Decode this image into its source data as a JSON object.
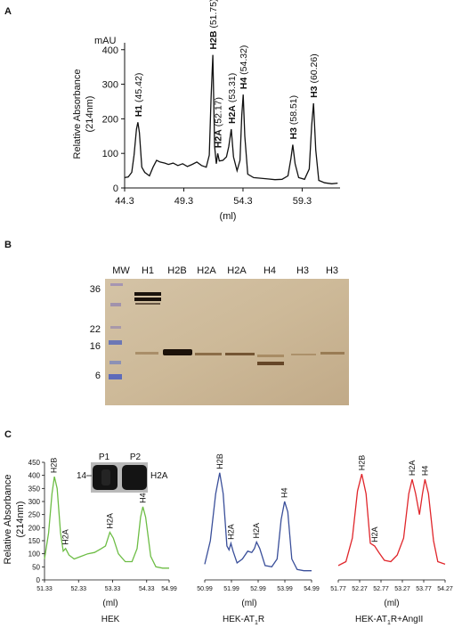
{
  "panel_labels": {
    "a": "A",
    "b": "B",
    "c": "C"
  },
  "panel_a": {
    "unit": "mAU",
    "ylabel_line1": "Relative Absorbance",
    "ylabel_line2": "(214nm)",
    "xlabel": "(ml)"
  },
  "panel_b": {
    "mw_header": "MW",
    "mw_marks": [
      "36",
      "22",
      "16",
      "6"
    ],
    "lanes": [
      "H1",
      "H2B",
      "H2A",
      "H2A",
      "H4",
      "H3",
      "H3"
    ]
  },
  "panel_c": {
    "ylabel_line1": "Relative Absorbance",
    "ylabel_line2": "(214nm)",
    "xlabel": "(ml)",
    "inset": {
      "p1": "P1",
      "p2": "P2",
      "mw": "14",
      "band": "H2A"
    },
    "subtitles": [
      "HEK",
      "HEK-AT",
      "HEK-AT",
      "R",
      "R+AngII",
      "1"
    ]
  },
  "chart_data": [
    {
      "type": "line",
      "panel": "A",
      "ylabel": "Relative Absorbance (214nm)",
      "xlabel": "(ml)",
      "unit": "mAU",
      "x_ticks": [
        "44.3",
        "49.3",
        "54.3",
        "59.3"
      ],
      "y_ticks": [
        "0",
        "100",
        "200",
        "300",
        "400"
      ],
      "xlim": [
        44.3,
        62.5
      ],
      "ylim": [
        0,
        420
      ],
      "peaks": [
        {
          "label": "H1",
          "elution": "(45.42)",
          "x": 45.42,
          "y": 190
        },
        {
          "label": "H2B",
          "elution": "(51.75)",
          "x": 51.75,
          "y": 385
        },
        {
          "label": "H2A",
          "elution": "(52.17)",
          "x": 52.17,
          "y": 100
        },
        {
          "label": "H2A",
          "elution": "(53.31)",
          "x": 53.31,
          "y": 170
        },
        {
          "label": "H4",
          "elution": "(54.32)",
          "x": 54.32,
          "y": 270
        },
        {
          "label": "H3",
          "elution": "(58.51)",
          "x": 58.51,
          "y": 125
        },
        {
          "label": "H3",
          "elution": "(60.26)",
          "x": 60.26,
          "y": 245
        }
      ],
      "baseline": [
        [
          44.3,
          30
        ],
        [
          44.6,
          32
        ],
        [
          44.9,
          45
        ],
        [
          45.1,
          95
        ],
        [
          45.3,
          170
        ],
        [
          45.42,
          190
        ],
        [
          45.55,
          160
        ],
        [
          45.75,
          60
        ],
        [
          46.0,
          45
        ],
        [
          46.4,
          35
        ],
        [
          46.7,
          60
        ],
        [
          47.0,
          80
        ],
        [
          47.3,
          75
        ],
        [
          47.7,
          72
        ],
        [
          48.0,
          68
        ],
        [
          48.4,
          72
        ],
        [
          48.8,
          65
        ],
        [
          49.2,
          70
        ],
        [
          49.6,
          62
        ],
        [
          50.0,
          68
        ],
        [
          50.4,
          75
        ],
        [
          50.8,
          65
        ],
        [
          51.2,
          60
        ],
        [
          51.45,
          95
        ],
        [
          51.6,
          260
        ],
        [
          51.75,
          385
        ],
        [
          51.9,
          120
        ],
        [
          52.05,
          70
        ],
        [
          52.17,
          100
        ],
        [
          52.3,
          78
        ],
        [
          52.6,
          80
        ],
        [
          52.9,
          90
        ],
        [
          53.1,
          120
        ],
        [
          53.31,
          170
        ],
        [
          53.5,
          90
        ],
        [
          53.8,
          50
        ],
        [
          54.05,
          80
        ],
        [
          54.2,
          210
        ],
        [
          54.32,
          270
        ],
        [
          54.45,
          150
        ],
        [
          54.7,
          40
        ],
        [
          55.2,
          30
        ],
        [
          55.8,
          28
        ],
        [
          56.4,
          26
        ],
        [
          57.0,
          24
        ],
        [
          57.6,
          25
        ],
        [
          58.1,
          35
        ],
        [
          58.35,
          85
        ],
        [
          58.51,
          125
        ],
        [
          58.7,
          70
        ],
        [
          59.0,
          30
        ],
        [
          59.5,
          25
        ],
        [
          59.9,
          55
        ],
        [
          60.1,
          180
        ],
        [
          60.26,
          245
        ],
        [
          60.45,
          110
        ],
        [
          60.7,
          22
        ],
        [
          61.2,
          15
        ],
        [
          61.8,
          12
        ],
        [
          62.3,
          14
        ]
      ]
    },
    {
      "type": "line",
      "panel": "C-1",
      "subtitle": "HEK",
      "color": "#6dbd45",
      "x_ticks": [
        "51.33",
        "52.33",
        "53.33",
        "54.33",
        "54.99"
      ],
      "xlim": [
        51.33,
        54.99
      ],
      "y_ticks": [
        "0",
        "50",
        "100",
        "150",
        "200",
        "250",
        "300",
        "350",
        "400",
        "450"
      ],
      "ylim": [
        0,
        450
      ],
      "peak_labels": [
        {
          "label": "H2B",
          "x": 51.6,
          "y": 395
        },
        {
          "label": "H2A",
          "x": 51.95,
          "y": 120
        },
        {
          "label": "H2A",
          "x": 53.25,
          "y": 182
        },
        {
          "label": "H4",
          "x": 54.22,
          "y": 280
        }
      ],
      "trace": [
        [
          51.33,
          80
        ],
        [
          51.45,
          180
        ],
        [
          51.55,
          330
        ],
        [
          51.62,
          395
        ],
        [
          51.7,
          350
        ],
        [
          51.8,
          180
        ],
        [
          51.88,
          110
        ],
        [
          51.95,
          120
        ],
        [
          52.05,
          95
        ],
        [
          52.2,
          80
        ],
        [
          52.4,
          90
        ],
        [
          52.6,
          100
        ],
        [
          52.8,
          105
        ],
        [
          53.0,
          120
        ],
        [
          53.12,
          130
        ],
        [
          53.25,
          182
        ],
        [
          53.35,
          160
        ],
        [
          53.5,
          100
        ],
        [
          53.7,
          70
        ],
        [
          53.9,
          70
        ],
        [
          54.05,
          120
        ],
        [
          54.15,
          240
        ],
        [
          54.22,
          280
        ],
        [
          54.3,
          240
        ],
        [
          54.45,
          90
        ],
        [
          54.6,
          50
        ],
        [
          54.8,
          45
        ],
        [
          54.99,
          45
        ]
      ]
    },
    {
      "type": "line",
      "panel": "C-2",
      "color": "#3a4f9a",
      "x_ticks": [
        "50.99",
        "51.99",
        "52.99",
        "53.99",
        "54.99"
      ],
      "xlim": [
        50.99,
        54.99
      ],
      "y_ticks": [],
      "ylim": [
        0,
        450
      ],
      "peak_labels": [
        {
          "label": "H2B",
          "x": 51.55,
          "y": 410
        },
        {
          "label": "H2A",
          "x": 51.97,
          "y": 140
        },
        {
          "label": "H2A",
          "x": 52.93,
          "y": 145
        },
        {
          "label": "H4",
          "x": 53.98,
          "y": 300
        }
      ],
      "trace": [
        [
          50.99,
          60
        ],
        [
          51.2,
          150
        ],
        [
          51.4,
          330
        ],
        [
          51.55,
          410
        ],
        [
          51.68,
          330
        ],
        [
          51.82,
          130
        ],
        [
          51.9,
          115
        ],
        [
          51.97,
          140
        ],
        [
          52.05,
          110
        ],
        [
          52.2,
          65
        ],
        [
          52.4,
          80
        ],
        [
          52.6,
          110
        ],
        [
          52.75,
          105
        ],
        [
          52.85,
          120
        ],
        [
          52.93,
          145
        ],
        [
          53.05,
          120
        ],
        [
          53.25,
          55
        ],
        [
          53.5,
          50
        ],
        [
          53.7,
          80
        ],
        [
          53.85,
          230
        ],
        [
          53.98,
          300
        ],
        [
          54.1,
          260
        ],
        [
          54.25,
          80
        ],
        [
          54.45,
          40
        ],
        [
          54.7,
          35
        ],
        [
          54.99,
          35
        ]
      ]
    },
    {
      "type": "line",
      "panel": "C-3",
      "color": "#e0262b",
      "x_ticks": [
        "51.77",
        "52.27",
        "52.77",
        "53.27",
        "53.77",
        "54.27"
      ],
      "xlim": [
        51.77,
        54.27
      ],
      "y_ticks": [],
      "ylim": [
        0,
        450
      ],
      "peak_labels": [
        {
          "label": "H2B",
          "x": 52.32,
          "y": 405
        },
        {
          "label": "H2A",
          "x": 52.62,
          "y": 130
        },
        {
          "label": "H2A",
          "x": 53.5,
          "y": 385
        },
        {
          "label": "H4",
          "x": 53.8,
          "y": 385
        }
      ],
      "trace": [
        [
          51.77,
          55
        ],
        [
          51.95,
          70
        ],
        [
          52.1,
          160
        ],
        [
          52.22,
          340
        ],
        [
          52.32,
          405
        ],
        [
          52.42,
          330
        ],
        [
          52.52,
          140
        ],
        [
          52.62,
          130
        ],
        [
          52.72,
          105
        ],
        [
          52.85,
          75
        ],
        [
          53.0,
          70
        ],
        [
          53.15,
          95
        ],
        [
          53.3,
          160
        ],
        [
          53.42,
          330
        ],
        [
          53.5,
          385
        ],
        [
          53.58,
          330
        ],
        [
          53.67,
          250
        ],
        [
          53.74,
          330
        ],
        [
          53.8,
          385
        ],
        [
          53.88,
          330
        ],
        [
          54.0,
          150
        ],
        [
          54.1,
          70
        ],
        [
          54.27,
          60
        ]
      ]
    }
  ]
}
